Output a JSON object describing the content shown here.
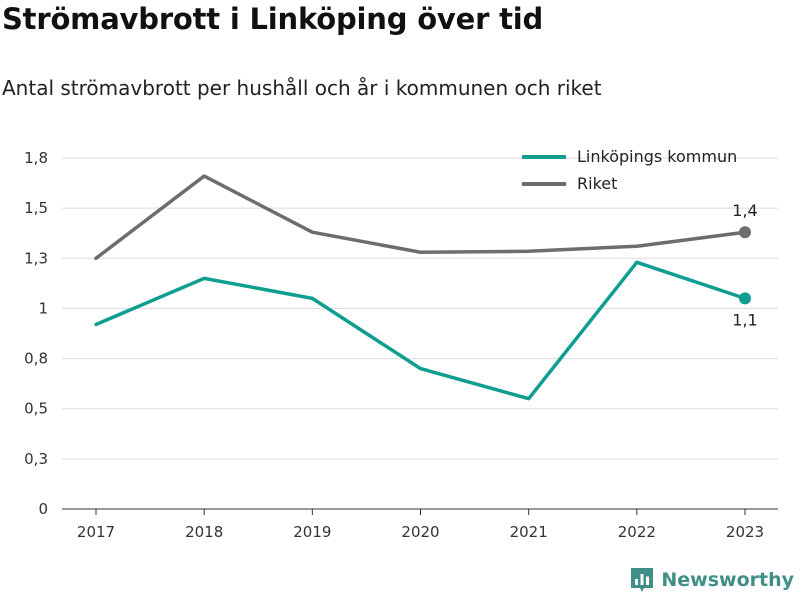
{
  "header": {
    "title": "Strömavbrott i Linköping över tid",
    "subtitle": "Antal strömavbrott per hushåll och år i kommunen och riket"
  },
  "brand": {
    "name": "Newsworthy",
    "color": "#3f8f86",
    "icon": "bar-chart-logo-icon"
  },
  "chart_data": {
    "type": "line",
    "title": "Strömavbrott i Linköping över tid",
    "subtitle": "Antal strömavbrott per hushåll och år i kommunen och riket",
    "x": [
      "2017",
      "2018",
      "2019",
      "2020",
      "2021",
      "2022",
      "2023"
    ],
    "yticks": [
      0,
      0.25,
      0.5,
      0.75,
      1,
      1.25,
      1.5,
      1.75
    ],
    "ytick_labels": [
      "0",
      "0,3",
      "0,5",
      "0,8",
      "1",
      "1,3",
      "1,5",
      "1,8"
    ],
    "ylim": [
      0,
      1.75
    ],
    "grid": true,
    "legend_position": "top-right",
    "series": [
      {
        "name": "Linköpings kommun",
        "color": "#0f9e8f",
        "values": [
          0.92,
          1.15,
          1.05,
          0.7,
          0.55,
          1.23,
          1.05
        ],
        "end_label": "1,1",
        "end_label_position": "below"
      },
      {
        "name": "Riket",
        "color": "#6d6c70",
        "values": [
          1.25,
          1.66,
          1.38,
          1.28,
          1.285,
          1.31,
          1.38
        ],
        "end_label": "1,4",
        "end_label_position": "above"
      }
    ]
  }
}
